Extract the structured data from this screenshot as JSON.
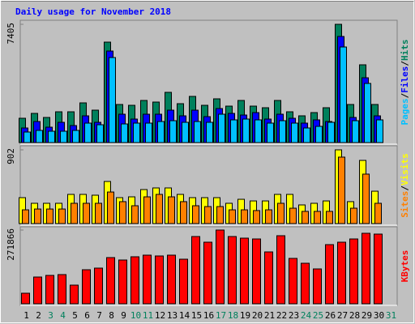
{
  "chart_data": {
    "type": "bar",
    "title": "Daily usage for November 2018",
    "categories": [
      1,
      2,
      3,
      4,
      5,
      6,
      7,
      8,
      9,
      10,
      11,
      12,
      13,
      14,
      15,
      16,
      17,
      18,
      19,
      20,
      21,
      22,
      23,
      24,
      25,
      26,
      27,
      28,
      29,
      30,
      31
    ],
    "label_colors": [
      "#000000",
      "#000000",
      "#00805c",
      "#00805c",
      "#000000",
      "#000000",
      "#000000",
      "#000000",
      "#000000",
      "#00805c",
      "#00805c",
      "#000000",
      "#000000",
      "#000000",
      "#000000",
      "#000000",
      "#00805c",
      "#00805c",
      "#000000",
      "#000000",
      "#000000",
      "#000000",
      "#000000",
      "#00805c",
      "#00805c",
      "#000000",
      "#000000",
      "#000000",
      "#000000",
      "#000000",
      "#00805c"
    ],
    "legend_separator": "/",
    "panels": [
      {
        "ylim": [
          0,
          7405
        ],
        "yticks": [
          7405
        ],
        "legend_order": [
          2,
          1,
          0
        ],
        "series": [
          {
            "name": "Hits",
            "color": "#00805c",
            "values": [
              1522,
              1826,
              1572,
              1927,
              1927,
              2485,
              2029,
              6289,
              2384,
              2333,
              2637,
              2536,
              3145,
              2435,
              2891,
              2333,
              2739,
              2282,
              2637,
              2282,
              2181,
              2637,
              1927,
              1674,
              1877,
              2181,
              7405,
              2384,
              4869,
              2384,
              null
            ]
          },
          {
            "name": "Files",
            "color": "#0000ff",
            "values": [
              913,
              1318,
              963,
              1268,
              1065,
              1673,
              1268,
              5730,
              1775,
              1471,
              1775,
              1775,
              2028,
              1673,
              2028,
              1623,
              2130,
              1826,
              1724,
              1876,
              1471,
              1775,
              1521,
              1217,
              1420,
              1318,
              6643,
              1572,
              4057,
              1673,
              null
            ]
          },
          {
            "name": "Pages",
            "color": "#00c0ff",
            "values": [
              659,
              761,
              710,
              710,
              761,
              1217,
              1115,
              5324,
              1166,
              1217,
              1217,
              1318,
              1369,
              1268,
              1318,
              1268,
              1775,
              1420,
              1471,
              1420,
              1217,
              1369,
              1217,
              913,
              1014,
              1268,
              5984,
              1369,
              3702,
              1420,
              null
            ]
          }
        ]
      },
      {
        "ylim": [
          0,
          902
        ],
        "yticks": [
          902
        ],
        "legend_order": [
          1,
          0
        ],
        "series": [
          {
            "name": "Visits",
            "color": "#ffff00",
            "values": [
              317,
              248,
              248,
              248,
              357,
              357,
              347,
              515,
              317,
              327,
              416,
              436,
              436,
              357,
              317,
              317,
              317,
              248,
              297,
              277,
              277,
              357,
              357,
              228,
              248,
              277,
              902,
              268,
              773,
              396,
              null
            ]
          },
          {
            "name": "Sites",
            "color": "#ff8000",
            "values": [
              168,
              178,
              178,
              178,
              248,
              248,
              248,
              386,
              268,
              218,
              327,
              357,
              327,
              268,
              218,
              208,
              208,
              168,
              168,
              159,
              168,
              248,
              188,
              149,
              149,
              149,
              813,
              188,
              605,
              248,
              null
            ]
          }
        ]
      },
      {
        "ylim": [
          0,
          271866
        ],
        "yticks": [
          271866
        ],
        "legend_order": [
          0
        ],
        "series": [
          {
            "name": "KBytes",
            "color": "#ff0000",
            "values": [
              38838,
              98588,
              104563,
              107550,
              68713,
              125475,
              131450,
              170288,
              161325,
              173275,
              179250,
              176263,
              179250,
              164313,
              247963,
              227050,
              271866,
              247963,
              241988,
              239000,
              191200,
              250950,
              167300,
              149375,
              128463,
              218088,
              227050,
              239000,
              259913,
              256925,
              null
            ]
          }
        ]
      }
    ]
  }
}
